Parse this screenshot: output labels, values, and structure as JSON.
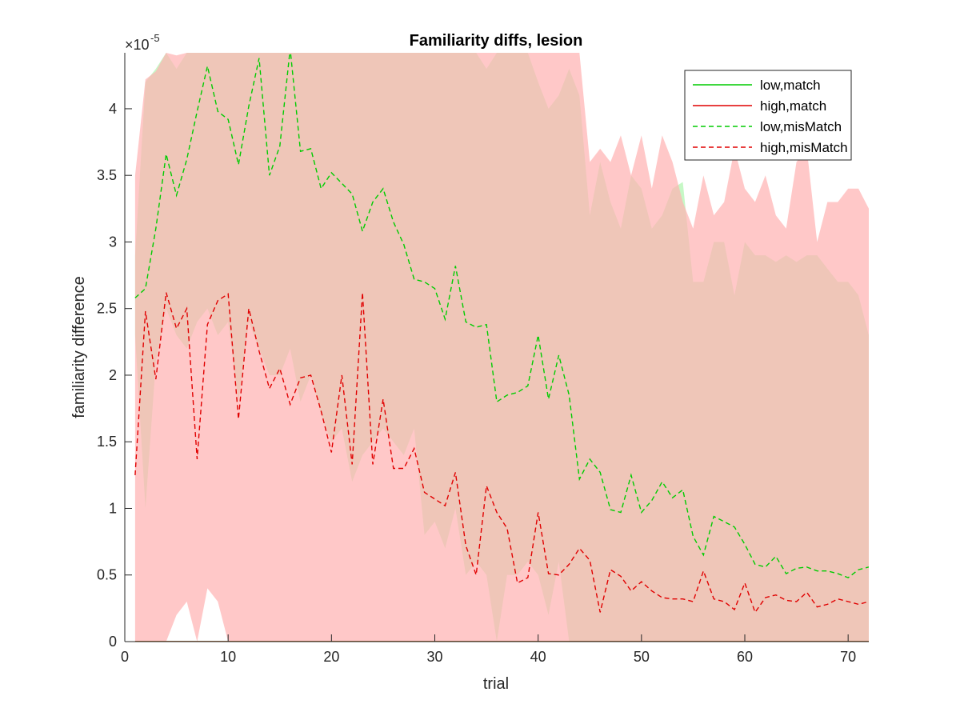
{
  "chart_data": {
    "type": "line",
    "title": "Familiarity diffs, lesion",
    "xlabel": "trial",
    "ylabel": "familiarity difference",
    "xlim": [
      0,
      72
    ],
    "ylim": [
      0,
      4.42
    ],
    "y_exponent_label": "×10",
    "y_exponent_power": "-5",
    "x_ticks": [
      0,
      10,
      20,
      30,
      40,
      50,
      60,
      70
    ],
    "y_ticks": [
      0,
      0.5,
      1,
      1.5,
      2,
      2.5,
      3,
      3.5,
      4
    ],
    "x_tick_labels": [
      "0",
      "10",
      "20",
      "30",
      "40",
      "50",
      "60",
      "70"
    ],
    "y_tick_labels": [
      "0",
      "0.5",
      "1",
      "1.5",
      "2",
      "2.5",
      "3",
      "3.5",
      "4"
    ],
    "legend_position": "top-right",
    "x": [
      1,
      2,
      3,
      4,
      5,
      6,
      7,
      8,
      9,
      10,
      11,
      12,
      13,
      14,
      15,
      16,
      17,
      18,
      19,
      20,
      21,
      22,
      23,
      24,
      25,
      26,
      27,
      28,
      29,
      30,
      31,
      32,
      33,
      34,
      35,
      36,
      37,
      38,
      39,
      40,
      41,
      42,
      43,
      44,
      45,
      46,
      47,
      48,
      49,
      50,
      51,
      52,
      53,
      54,
      55,
      56,
      57,
      58,
      59,
      60,
      61,
      62,
      63,
      64,
      65,
      66,
      67,
      68,
      69,
      70,
      71,
      72
    ],
    "series": [
      {
        "name": "low,match",
        "color": "#00cc00",
        "style": "solid",
        "values": [
          0,
          0,
          0,
          0,
          0,
          0,
          0,
          0,
          0,
          0,
          0,
          0,
          0,
          0,
          0,
          0,
          0,
          0,
          0,
          0,
          0,
          0,
          0,
          0,
          0,
          0,
          0,
          0,
          0,
          0,
          0,
          0,
          0,
          0,
          0,
          0,
          0,
          0,
          0,
          0,
          0,
          0,
          0,
          0,
          0,
          0,
          0,
          0,
          0,
          0,
          0,
          0,
          0,
          0,
          0,
          0,
          0,
          0,
          0,
          0,
          0,
          0,
          0,
          0,
          0,
          0,
          0,
          0,
          0,
          0,
          0,
          0
        ]
      },
      {
        "name": "high,match",
        "color": "#e00000",
        "style": "solid",
        "values": [
          0,
          0,
          0,
          0,
          0,
          0,
          0,
          0,
          0,
          0,
          0,
          0,
          0,
          0,
          0,
          0,
          0,
          0,
          0,
          0,
          0,
          0,
          0,
          0,
          0,
          0,
          0,
          0,
          0,
          0,
          0,
          0,
          0,
          0,
          0,
          0,
          0,
          0,
          0,
          0,
          0,
          0,
          0,
          0,
          0,
          0,
          0,
          0,
          0,
          0,
          0,
          0,
          0,
          0,
          0,
          0,
          0,
          0,
          0,
          0,
          0,
          0,
          0,
          0,
          0,
          0,
          0,
          0,
          0,
          0,
          0,
          0
        ]
      },
      {
        "name": "low,misMatch",
        "color": "#00cc00",
        "style": "dashed",
        "values": [
          2.58,
          2.65,
          3.1,
          3.66,
          3.35,
          3.62,
          3.98,
          4.32,
          3.98,
          3.92,
          3.58,
          4.02,
          4.38,
          3.5,
          3.72,
          4.45,
          3.68,
          3.7,
          3.4,
          3.52,
          3.44,
          3.36,
          3.08,
          3.3,
          3.4,
          3.15,
          2.98,
          2.72,
          2.7,
          2.65,
          2.42,
          2.82,
          2.4,
          2.36,
          2.38,
          1.8,
          1.85,
          1.87,
          1.92,
          2.3,
          1.82,
          2.15,
          1.85,
          1.22,
          1.37,
          1.27,
          0.99,
          0.97,
          1.25,
          0.97,
          1.06,
          1.2,
          1.08,
          1.14,
          0.79,
          0.65,
          0.94,
          0.9,
          0.86,
          0.73,
          0.58,
          0.56,
          0.64,
          0.51,
          0.55,
          0.56,
          0.53,
          0.53,
          0.51,
          0.48,
          0.54,
          0.56
        ]
      },
      {
        "name": "high,misMatch",
        "color": "#e00000",
        "style": "dashed",
        "values": [
          1.25,
          2.48,
          1.97,
          2.62,
          2.35,
          2.5,
          1.37,
          2.38,
          2.56,
          2.61,
          1.67,
          2.5,
          2.18,
          1.9,
          2.05,
          1.78,
          1.98,
          2.0,
          1.73,
          1.42,
          2.0,
          1.33,
          2.62,
          1.33,
          1.82,
          1.3,
          1.3,
          1.45,
          1.12,
          1.07,
          1.02,
          1.27,
          0.72,
          0.5,
          1.17,
          0.97,
          0.85,
          0.44,
          0.48,
          0.97,
          0.51,
          0.5,
          0.58,
          0.7,
          0.61,
          0.22,
          0.54,
          0.49,
          0.38,
          0.45,
          0.38,
          0.33,
          0.32,
          0.32,
          0.3,
          0.53,
          0.32,
          0.3,
          0.24,
          0.44,
          0.22,
          0.33,
          0.35,
          0.31,
          0.3,
          0.37,
          0.26,
          0.28,
          0.32,
          0.3,
          0.28,
          0.3
        ]
      }
    ],
    "bands": [
      {
        "series": "low,misMatch",
        "color": "#b3f5b3",
        "opacity": 0.75,
        "upper": [
          2.9,
          4.2,
          4.3,
          4.42,
          4.3,
          4.42,
          4.42,
          4.42,
          4.42,
          4.42,
          4.42,
          4.42,
          4.42,
          4.42,
          4.42,
          4.42,
          4.42,
          4.42,
          4.42,
          4.42,
          4.42,
          4.42,
          4.42,
          4.42,
          4.42,
          4.42,
          4.42,
          4.42,
          4.42,
          4.42,
          4.42,
          4.42,
          4.42,
          4.42,
          4.3,
          4.42,
          4.42,
          4.42,
          4.42,
          4.2,
          4.0,
          4.1,
          4.3,
          4.1,
          3.2,
          3.6,
          3.3,
          3.1,
          3.5,
          3.4,
          3.1,
          3.2,
          3.4,
          3.45,
          2.7,
          2.7,
          3.0,
          3.0,
          2.6,
          3.0,
          2.9,
          2.9,
          2.85,
          2.9,
          2.85,
          2.9,
          2.9,
          2.8,
          2.7,
          2.7,
          2.6,
          2.3
        ],
        "lower": [
          2.3,
          1.0,
          2.1,
          2.5,
          2.3,
          2.2,
          2.4,
          2.5,
          2.3,
          2.4,
          1.8,
          2.4,
          2.2,
          2.0,
          2.0,
          2.2,
          1.8,
          2.0,
          1.7,
          1.5,
          1.6,
          1.2,
          1.4,
          1.5,
          1.6,
          1.5,
          1.4,
          1.6,
          0.8,
          0.9,
          0.7,
          1.0,
          0.5,
          0.6,
          0.5,
          0,
          0.5,
          0.5,
          0.6,
          0.5,
          0.2,
          0.6,
          0,
          0,
          0,
          0,
          0,
          0,
          0,
          0,
          0,
          0,
          0,
          0,
          0,
          0,
          0,
          0,
          0,
          0,
          0,
          0,
          0,
          0,
          0,
          0,
          0,
          0,
          0,
          0,
          0,
          0
        ]
      },
      {
        "series": "high,misMatch",
        "color": "#ffb3b3",
        "opacity": 0.72,
        "upper": [
          3.5,
          4.22,
          4.28,
          4.42,
          4.4,
          4.42,
          4.42,
          4.42,
          4.42,
          4.42,
          4.42,
          4.42,
          4.42,
          4.42,
          4.42,
          4.42,
          4.42,
          4.42,
          4.42,
          4.42,
          4.42,
          4.42,
          4.42,
          4.42,
          4.42,
          4.42,
          4.42,
          4.42,
          4.42,
          4.42,
          4.42,
          4.42,
          4.42,
          4.42,
          4.42,
          4.42,
          4.42,
          4.42,
          4.42,
          4.42,
          4.42,
          4.42,
          4.42,
          4.42,
          3.6,
          3.7,
          3.6,
          3.8,
          3.5,
          3.8,
          3.4,
          3.8,
          3.6,
          3.3,
          3.1,
          3.5,
          3.2,
          3.3,
          3.7,
          3.4,
          3.3,
          3.5,
          3.2,
          3.1,
          3.6,
          3.7,
          3.0,
          3.3,
          3.3,
          3.4,
          3.4,
          3.25
        ],
        "lower": [
          0,
          0,
          0,
          0,
          0.2,
          0.3,
          0,
          0.4,
          0.3,
          0,
          0,
          0,
          0,
          0,
          0,
          0,
          0,
          0,
          0,
          0,
          0,
          0,
          0,
          0,
          0,
          0,
          0,
          0,
          0,
          0,
          0,
          0,
          0,
          0,
          0,
          0,
          0,
          0,
          0,
          0,
          0,
          0,
          0,
          0,
          0,
          0,
          0,
          0,
          0,
          0,
          0,
          0,
          0,
          0,
          0,
          0,
          0,
          0,
          0,
          0,
          0,
          0,
          0,
          0,
          0,
          0,
          0,
          0,
          0,
          0,
          0,
          0
        ]
      }
    ]
  }
}
